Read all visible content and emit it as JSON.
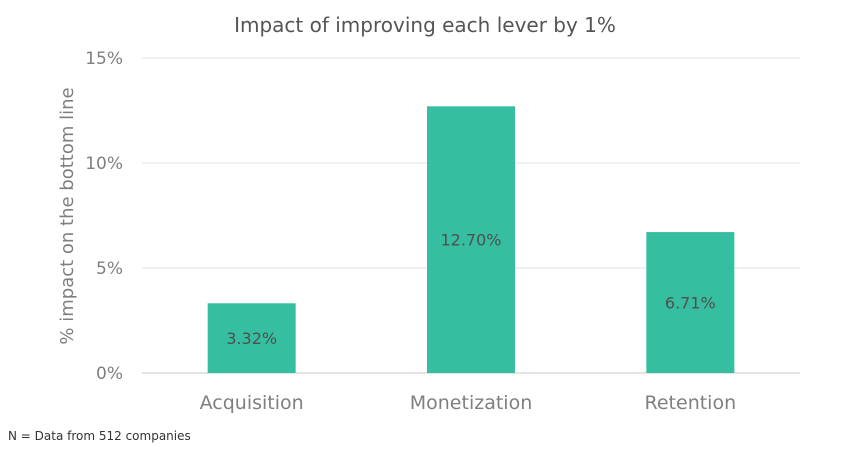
{
  "chart_data": {
    "type": "bar",
    "title": "Impact of improving each lever by 1%",
    "ylabel": "% impact on the bottom line",
    "xlabel": "",
    "categories": [
      "Acquisition",
      "Monetization",
      "Retention"
    ],
    "values": [
      3.32,
      12.7,
      6.71
    ],
    "data_labels": [
      "3.32%",
      "12.70%",
      "6.71%"
    ],
    "ylim": [
      0,
      15
    ],
    "yticks": [
      0,
      5,
      10,
      15
    ],
    "ytick_labels": [
      "0%",
      "5%",
      "10%",
      "15%"
    ],
    "grid": true,
    "legend": "none",
    "bar_color": "#35bfa0"
  },
  "footnote": "N = Data from 512 companies"
}
